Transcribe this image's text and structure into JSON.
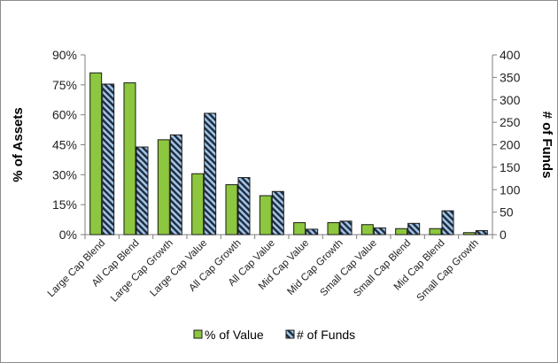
{
  "chart_data": {
    "type": "bar",
    "categories": [
      "Large Cap Blend",
      "All Cap Blend",
      "Large Cap Growth",
      "Large Cap Value",
      "All Cap Growth",
      "All Cap Value",
      "Mid Cap Value",
      "Mid Cap Growth",
      "Small Cap Value",
      "Small Cap Blend",
      "Mid Cap Blend",
      "Small Cap Growth"
    ],
    "series": [
      {
        "name": "% of Value",
        "axis": "left",
        "color": "#8dc63f",
        "values": [
          81,
          76,
          47.5,
          30.5,
          25,
          19.5,
          6,
          6,
          5,
          3,
          3,
          1
        ]
      },
      {
        "name": "# of Funds",
        "axis": "right",
        "color": "#8fb8e0",
        "pattern": "diagonal-stripes",
        "values": [
          335,
          195,
          222,
          270,
          127,
          96,
          12,
          30,
          15,
          25,
          53,
          9
        ]
      }
    ],
    "left_axis": {
      "label": "% of Assets",
      "ylim": [
        0,
        90
      ],
      "ticks": [
        0,
        15,
        30,
        45,
        60,
        75,
        90
      ],
      "tick_labels": [
        "0%",
        "15%",
        "30%",
        "45%",
        "60%",
        "75%",
        "90%"
      ]
    },
    "right_axis": {
      "label": "# of Funds",
      "ylim": [
        0,
        400
      ],
      "ticks": [
        0,
        50,
        100,
        150,
        200,
        250,
        300,
        350,
        400
      ],
      "tick_labels": [
        "0",
        "50",
        "100",
        "150",
        "200",
        "250",
        "300",
        "350",
        "400"
      ]
    },
    "legend": {
      "position": "bottom-center",
      "entries": [
        "% of Value",
        "# of Funds"
      ]
    },
    "grid": false,
    "title": ""
  }
}
